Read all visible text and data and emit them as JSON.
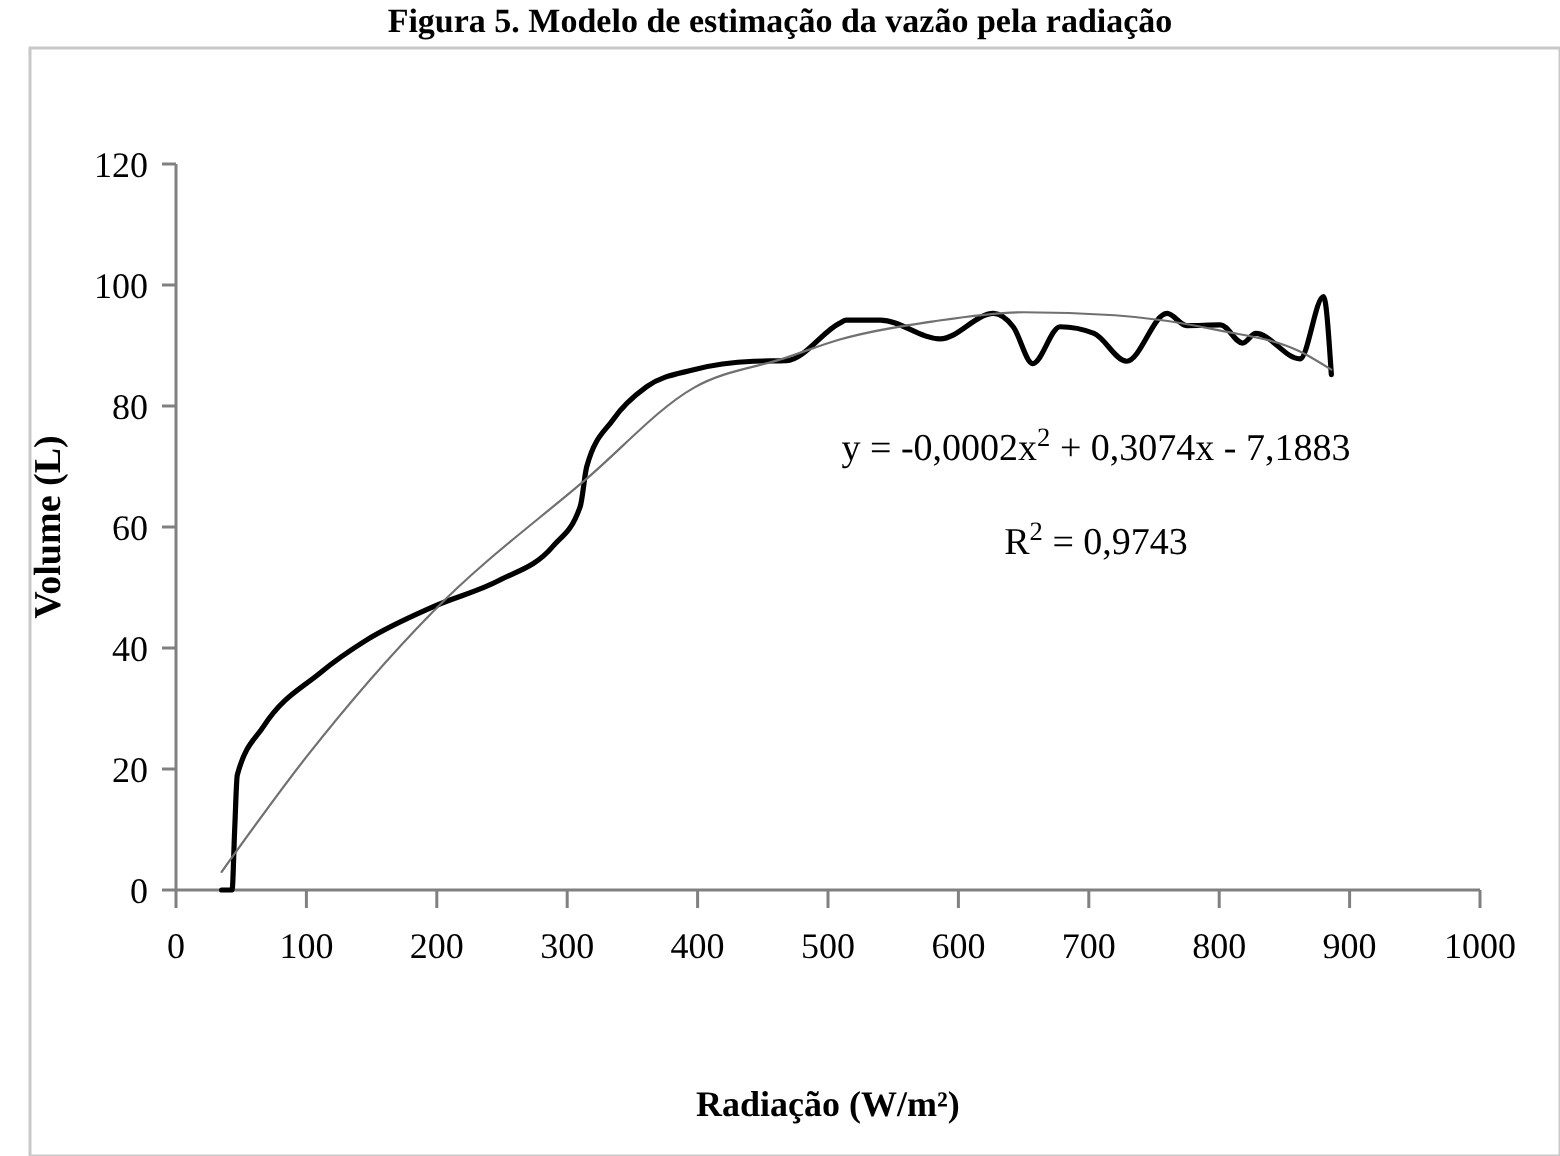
{
  "chart_data": {
    "type": "line",
    "title": "Figura 5. Modelo de estimação da vazão pela radiação",
    "xlabel": "Radiação (W/m²)",
    "ylabel": "Volume (L)",
    "xlim": [
      0,
      1000
    ],
    "xticks": [
      0,
      100,
      200,
      300,
      400,
      500,
      600,
      700,
      800,
      900,
      1000
    ],
    "ylim": [
      0,
      120
    ],
    "yticks": [
      0,
      20,
      40,
      60,
      80,
      100,
      120
    ],
    "grid": false,
    "marker": "none",
    "line_style": "solid",
    "series": [
      {
        "color": "#000000",
        "x": [
          35,
          43,
          45,
          47,
          67,
          110,
          146,
          197,
          248,
          289,
          310,
          315,
          335,
          361,
          397,
          443,
          468,
          509,
          514,
          540,
          586,
          627,
          642,
          657,
          678,
          704,
          729,
          760,
          775,
          801,
          818,
          828,
          862,
          880,
          886
        ],
        "values": [
          0,
          0,
          10,
          19,
          27,
          35.8,
          41.3,
          46.8,
          51.2,
          56.8,
          63.4,
          70,
          77.7,
          83.2,
          86,
          87.4,
          87.5,
          93.7,
          94.2,
          94.2,
          91.1,
          95.3,
          93.1,
          87,
          93.1,
          92,
          87.4,
          95.3,
          93.3,
          93.4,
          90.4,
          92,
          87.8,
          98.1,
          85.2
        ]
      },
      {
        "type": "line",
        "color": "#707070",
        "x": [
          35,
          100,
          197,
          315,
          397,
          468,
          509,
          581,
          650,
          720,
          800,
          862,
          886
        ],
        "values": [
          3,
          22,
          46,
          68,
          83,
          88,
          91,
          94,
          95.5,
          95,
          92.5,
          89,
          86
        ]
      }
    ],
    "annotations": [
      "y = -0,0002x$^{2}$ + 0,3074x - 7,1883",
      "R$^{2}$ = 0,9743"
    ]
  }
}
